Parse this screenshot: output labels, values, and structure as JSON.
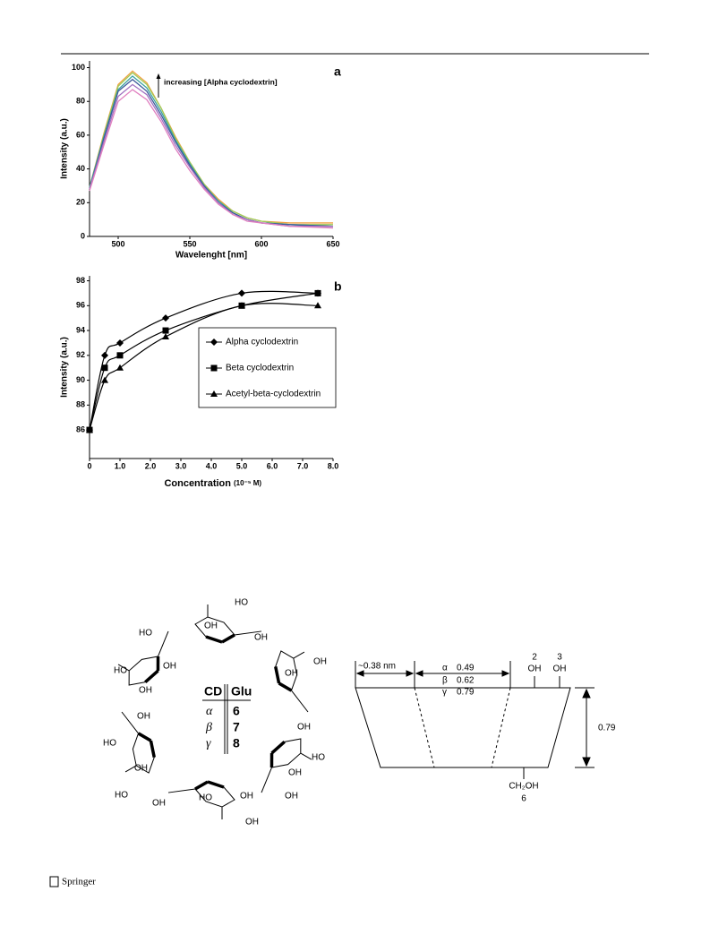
{
  "chart_data": [
    {
      "type": "line",
      "label": "a",
      "annotation": "increasing [Alpha cyclodextrin]",
      "xlabel": "Wavelenght [nm]",
      "ylabel": "Intensity (a.u.)",
      "x": [
        480,
        490,
        500,
        510,
        520,
        530,
        540,
        550,
        560,
        570,
        580,
        590,
        600,
        620,
        650
      ],
      "series": [
        {
          "color": "#f0a040",
          "values": [
            29,
            61,
            90,
            98,
            91,
            76,
            59,
            44,
            31,
            22,
            15,
            11,
            9,
            8,
            8
          ]
        },
        {
          "color": "#9ccc5a",
          "values": [
            29,
            60,
            89,
            97,
            90,
            76,
            58,
            44,
            31,
            21,
            15,
            11,
            9,
            7,
            7
          ]
        },
        {
          "color": "#3aa0a0",
          "values": [
            29,
            59,
            87,
            95,
            88,
            74,
            57,
            43,
            30,
            21,
            14,
            10,
            8,
            7,
            6
          ]
        },
        {
          "color": "#3b5a9a",
          "values": [
            28,
            58,
            86,
            93,
            86,
            72,
            56,
            42,
            30,
            20,
            14,
            10,
            8,
            7,
            6
          ]
        },
        {
          "color": "#a070c0",
          "values": [
            28,
            56,
            83,
            90,
            84,
            70,
            54,
            41,
            29,
            20,
            13,
            10,
            8,
            6,
            6
          ]
        },
        {
          "color": "#e080c0",
          "values": [
            27,
            54,
            80,
            87,
            81,
            68,
            52,
            39,
            28,
            19,
            13,
            9,
            8,
            6,
            5
          ]
        }
      ],
      "xlim": [
        480,
        650
      ],
      "xticks": [
        500,
        550,
        600,
        650
      ],
      "ylim": [
        0,
        104
      ],
      "yticks": [
        0,
        20,
        40,
        60,
        80,
        100
      ]
    },
    {
      "type": "line",
      "label": "b",
      "xlabel": "Concentration",
      "xlabel_unit": "(10⁻⁵ M)",
      "ylabel": "Intensity (a.u.)",
      "smooth": true,
      "legend": "center-right",
      "x": [
        0,
        0.5,
        1,
        2.5,
        5,
        7.5
      ],
      "series": [
        {
          "name": "Alpha cyclodextrin",
          "color": "#000000",
          "marker": "diamond",
          "values": [
            86,
            92,
            93,
            95,
            97,
            97
          ]
        },
        {
          "name": "Beta cyclodextrin",
          "color": "#000000",
          "marker": "square",
          "values": [
            86,
            91,
            92,
            94,
            96,
            97
          ]
        },
        {
          "name": "Acetyl-beta-cyclodextrin",
          "color": "#000000",
          "marker": "triangle",
          "values": [
            86,
            90,
            91,
            93.5,
            96,
            96
          ]
        }
      ],
      "xlim": [
        0,
        8
      ],
      "xticks": [
        0,
        {
          "value": 1,
          "label": "1.0"
        },
        {
          "value": 2,
          "label": "2.0"
        },
        {
          "value": 3,
          "label": "3.0"
        },
        {
          "value": 4,
          "label": "4.0"
        },
        {
          "value": 5,
          "label": "5.0"
        },
        {
          "value": 6,
          "label": "6.0"
        },
        {
          "value": 7,
          "label": "7.0"
        },
        {
          "value": 8,
          "label": "8.0"
        }
      ],
      "ylim": [
        83.7,
        98.4
      ],
      "yticks": [
        86,
        88,
        90,
        92,
        94,
        96,
        98
      ]
    }
  ],
  "diagram": {
    "ring_labels": [
      "HO",
      "OH",
      "HO",
      "OH",
      "HO",
      "OH",
      "OH",
      "OH",
      "OH",
      "OH",
      "HO",
      "OH",
      "HO",
      "OH",
      "OH",
      "OH",
      "HO",
      "HO",
      "OH",
      "OH",
      "OH"
    ],
    "table": {
      "header": [
        "CD",
        "Glu"
      ],
      "rows": [
        [
          "α",
          "6"
        ],
        [
          "β",
          "7"
        ],
        [
          "γ",
          "8"
        ]
      ]
    },
    "cone": {
      "width_label": "~0.38 nm",
      "diameters": [
        [
          "α",
          "0.49"
        ],
        [
          "β",
          "0.62"
        ],
        [
          "γ",
          "0.79"
        ]
      ],
      "height": "0.79",
      "top_positions": [
        "2",
        "3"
      ],
      "top_groups": [
        "OH",
        "OH"
      ],
      "bottom_group": "CH₂OH",
      "bottom_position": "6"
    }
  },
  "footer": {
    "publisher": "Springer"
  }
}
